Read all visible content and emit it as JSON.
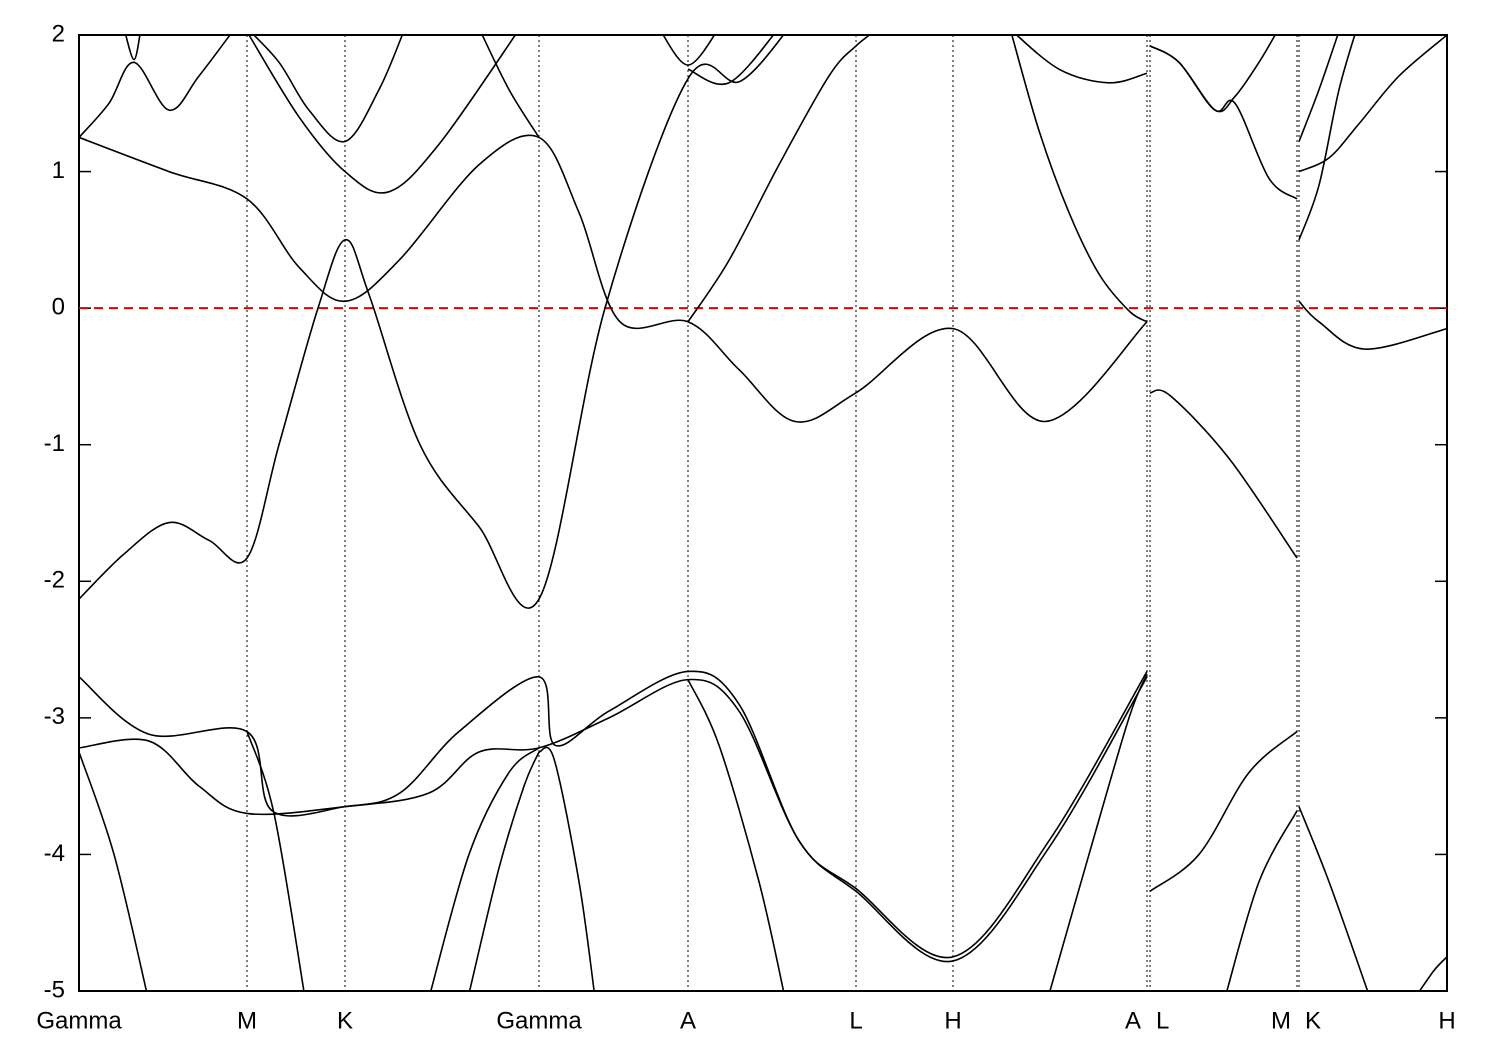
{
  "chart_data": {
    "type": "line",
    "color": "#000000",
    "xlim": [
      0,
      13.68
    ],
    "ylim": [
      -5,
      2
    ],
    "xticks": [
      {
        "value": 0,
        "label": "Gamma"
      },
      {
        "value": 1.68,
        "label": "M"
      },
      {
        "value": 2.66,
        "label": "K"
      },
      {
        "value": 4.6,
        "label": "Gamma"
      },
      {
        "value": 6.09,
        "label": "A"
      },
      {
        "value": 7.77,
        "label": "L"
      },
      {
        "value": 8.74,
        "label": "H"
      },
      {
        "value": 10.68,
        "label": "A"
      },
      {
        "value": 10.71,
        "label": "L"
      },
      {
        "value": 12.18,
        "label": "M"
      },
      {
        "value": 12.2,
        "label": "K"
      },
      {
        "value": 13.68,
        "label": "H"
      }
    ],
    "yticks": [
      -5,
      -4,
      -3,
      -2,
      -1,
      0,
      1,
      2
    ],
    "grid": true,
    "hlines": [
      {
        "value": 0,
        "color": "#e00000"
      }
    ],
    "series": [
      {
        "x": [
          0,
          0.45,
          0.9,
          1.3,
          1.68,
          2.0,
          2.39,
          2.66,
          2.9,
          3.41,
          4.0,
          4.6,
          5.26,
          6.09,
          6.61,
          7.1
        ],
        "values": [
          -2.13,
          -1.8,
          -1.57,
          -1.7,
          -1.83,
          -1.0,
          0,
          0.5,
          0.1,
          -1.0,
          -1.6,
          -2.13,
          0,
          1.68,
          1.66,
          2.05
        ]
      },
      {
        "x": [
          0,
          0.9,
          1.68,
          2.2,
          2.66,
          3.2,
          4.0,
          4.6,
          5.0,
          5.41,
          6.09,
          6.6,
          7.16,
          7.77,
          8.74,
          9.66,
          10.68,
          10.695,
          10.71,
          10.91,
          11.5,
          12.18,
          12.19,
          12.2,
          12.4,
          12.86,
          13.68
        ],
        "values": [
          1.25,
          1.0,
          0.8,
          0.3,
          0.05,
          0.35,
          1.05,
          1.25,
          0.7,
          -0.1,
          -0.1,
          -0.45,
          -0.83,
          -0.62,
          -0.15,
          -0.83,
          -0.1,
          null,
          -0.62,
          -0.64,
          -1.1,
          -1.83,
          null,
          0.05,
          -0.1,
          -0.3,
          -0.15
        ]
      },
      {
        "x": [
          6.09,
          6.5,
          7.0,
          7.5,
          7.77,
          8.0
        ],
        "values": [
          -0.1,
          0.35,
          1.05,
          1.7,
          1.92,
          2.05
        ]
      },
      {
        "x": [
          9.31,
          9.6,
          9.9,
          10.2,
          10.5,
          10.68
        ],
        "values": [
          2.05,
          1.3,
          0.7,
          0.25,
          -0.02,
          -0.1
        ]
      },
      {
        "x": [
          10.71,
          11.0,
          11.36,
          11.56,
          11.9,
          12.18
        ],
        "values": [
          1.92,
          1.8,
          1.45,
          1.5,
          0.95,
          0.8
        ]
      },
      {
        "x": [
          10.71,
          11.0,
          11.36,
          11.56,
          11.8,
          12.0
        ],
        "values": [
          1.92,
          1.8,
          1.45,
          1.55,
          1.8,
          2.05
        ]
      },
      {
        "x": [
          12.2,
          12.4,
          12.6,
          12.8
        ],
        "values": [
          0.5,
          0.9,
          1.6,
          2.1
        ]
      },
      {
        "x": [
          12.2,
          12.5,
          12.8,
          13.2,
          13.68
        ],
        "values": [
          1.0,
          1.1,
          1.35,
          1.7,
          2.0
        ]
      },
      {
        "x": [
          12.2,
          12.4,
          12.61
        ],
        "values": [
          1.22,
          1.6,
          2.05
        ]
      },
      {
        "x": [
          0,
          0.3,
          0.55,
          0.9,
          1.2,
          1.56
        ],
        "values": [
          1.25,
          1.5,
          1.8,
          1.45,
          1.7,
          2.05
        ]
      },
      {
        "x": [
          0.45,
          0.55,
          0.62
        ],
        "values": [
          2.05,
          1.82,
          2.05
        ]
      },
      {
        "x": [
          1.68,
          2.0,
          2.3,
          2.66,
          3.0,
          3.26
        ],
        "values": [
          2.05,
          1.8,
          1.45,
          1.22,
          1.6,
          2.05
        ]
      },
      {
        "x": [
          1.7,
          2.2,
          2.66,
          3.09,
          3.6,
          4.41
        ],
        "values": [
          2.0,
          1.4,
          1.0,
          0.85,
          1.2,
          2.05
        ]
      },
      {
        "x": [
          4.0,
          4.3,
          4.6
        ],
        "values": [
          2.05,
          1.6,
          1.25
        ]
      },
      {
        "x": [
          5.8,
          6.09,
          6.4
        ],
        "values": [
          2.05,
          1.78,
          2.05
        ]
      },
      {
        "x": [
          6.09,
          6.5,
          7.0
        ],
        "values": [
          1.75,
          1.65,
          2.05
        ]
      },
      {
        "x": [
          9.3,
          9.8,
          10.3,
          10.68
        ],
        "values": [
          2.05,
          1.75,
          1.65,
          1.72
        ]
      },
      {
        "x": [
          0,
          0.7,
          1.68,
          1.93,
          2.66,
          3.21,
          3.8,
          4.6,
          4.76,
          5.3,
          6.09,
          6.6,
          7.2,
          7.77,
          8.74,
          9.7,
          10.68,
          10.695,
          10.71,
          11.2,
          11.7,
          12.18
        ],
        "values": [
          -2.7,
          -3.12,
          -3.1,
          -3.68,
          -3.65,
          -3.55,
          -3.1,
          -2.7,
          -3.2,
          -2.95,
          -2.66,
          -2.9,
          -3.9,
          -4.25,
          -4.75,
          -3.9,
          -2.66,
          null,
          -4.27,
          -4.0,
          -3.4,
          -3.1
        ]
      },
      {
        "x": [
          0,
          0.7,
          1.2,
          1.68,
          2.66,
          3.5,
          4.0,
          4.6,
          5.3,
          6.09,
          6.6,
          7.2,
          7.77,
          8.74,
          9.7,
          10.68
        ],
        "values": [
          -3.22,
          -3.17,
          -3.5,
          -3.7,
          -3.65,
          -3.55,
          -3.25,
          -3.22,
          -3.0,
          -2.72,
          -2.95,
          -3.9,
          -4.27,
          -4.78,
          -3.95,
          -2.7
        ]
      },
      {
        "x": [
          0,
          0.35,
          0.69
        ],
        "values": [
          -3.25,
          -4.0,
          -5.05
        ]
      },
      {
        "x": [
          1.68,
          1.95,
          2.26
        ],
        "values": [
          -3.1,
          -3.7,
          -5.05
        ]
      },
      {
        "x": [
          3.5,
          3.9,
          4.3,
          4.6
        ],
        "values": [
          -5.05,
          -4.0,
          -3.4,
          -3.22
        ]
      },
      {
        "x": [
          3.89,
          4.2,
          4.45,
          4.6
        ],
        "values": [
          -5.05,
          -4.1,
          -3.5,
          -3.25
        ]
      },
      {
        "x": [
          4.6,
          4.75,
          5.0,
          5.16
        ],
        "values": [
          -3.25,
          -3.3,
          -4.2,
          -5.05
        ]
      },
      {
        "x": [
          6.09,
          6.4,
          6.8,
          7.06
        ],
        "values": [
          -2.72,
          -3.2,
          -4.2,
          -5.05
        ]
      },
      {
        "x": [
          9.69,
          10.1,
          10.5,
          10.68
        ],
        "values": [
          -5.05,
          -4.0,
          -3.0,
          -2.68
        ]
      },
      {
        "x": [
          11.46,
          11.8,
          12.18
        ],
        "values": [
          -5.05,
          -4.2,
          -3.68
        ]
      },
      {
        "x": [
          12.2,
          12.5,
          12.91
        ],
        "values": [
          -3.65,
          -4.2,
          -5.05
        ]
      },
      {
        "x": [
          13.36,
          13.55,
          13.68
        ],
        "values": [
          -5.05,
          -4.85,
          -4.75
        ]
      }
    ]
  }
}
